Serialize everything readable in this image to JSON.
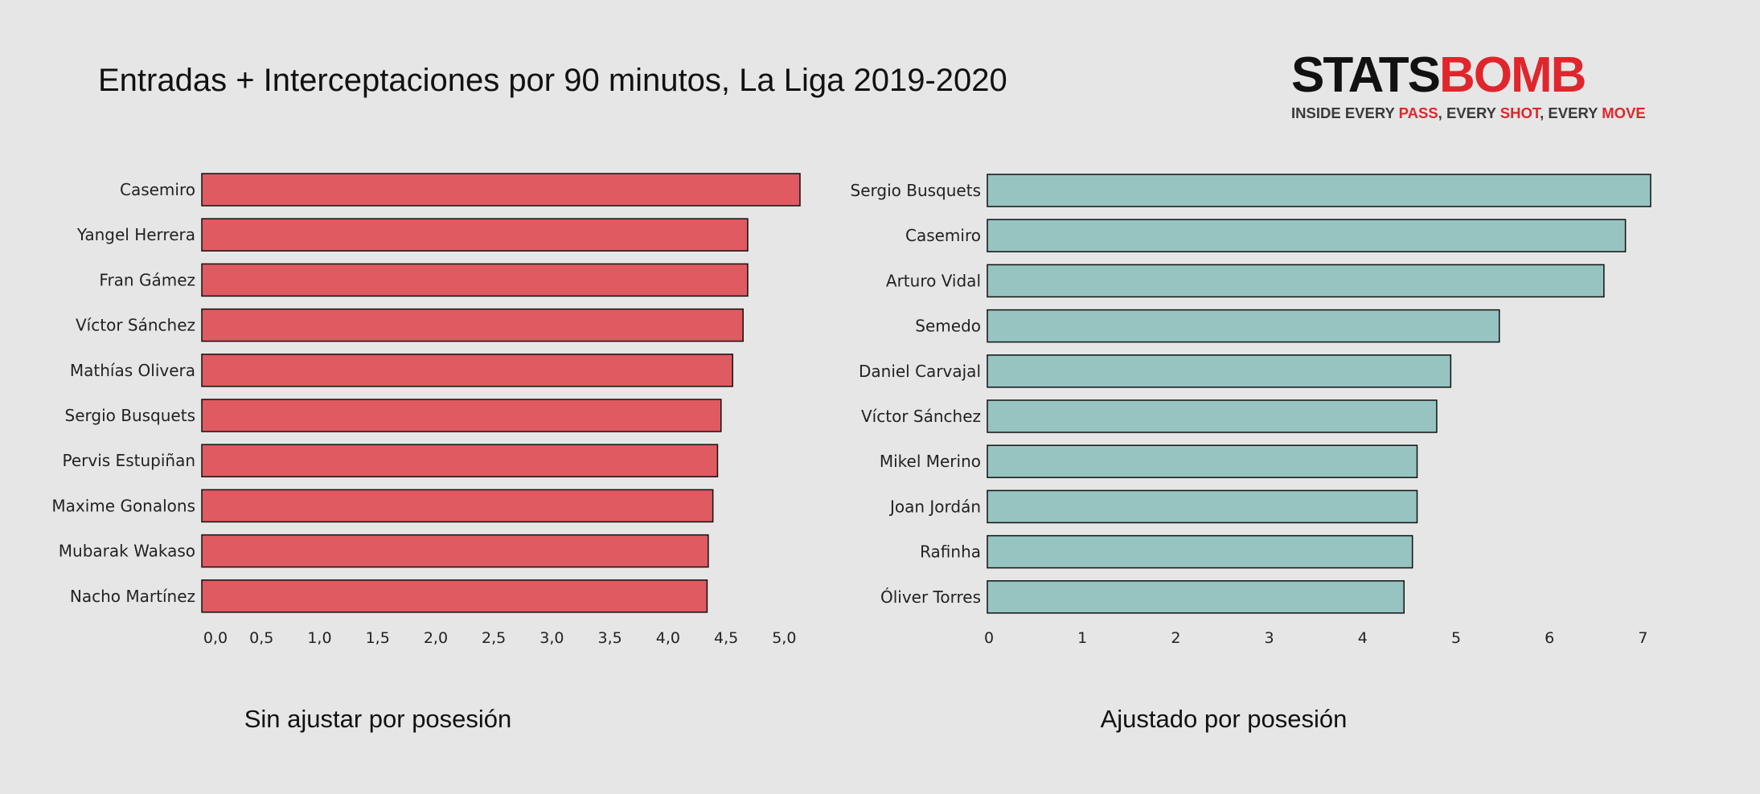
{
  "title": "Entradas + Interceptaciones por 90 minutos, La Liga 2019-2020",
  "logo": {
    "word_left": "STATS",
    "word_right": "BOMB",
    "tag_parts": [
      {
        "text": "INSIDE EVERY ",
        "red": false
      },
      {
        "text": "PASS",
        "red": true
      },
      {
        "text": ", EVERY ",
        "red": false
      },
      {
        "text": "SHOT",
        "red": true
      },
      {
        "text": ", EVERY ",
        "red": false
      },
      {
        "text": "MOVE",
        "red": true
      }
    ]
  },
  "colors": {
    "background": "#e6e6e6",
    "left_bar": "#e05a62",
    "right_bar": "#96c4c1",
    "bar_edge": "#111111",
    "brand_red": "#e0262c"
  },
  "chart_data": [
    {
      "type": "bar",
      "orientation": "horizontal",
      "subtitle": "Sin ajustar por posesión",
      "categories": [
        "Casemiro",
        "Yangel Herrera",
        "Fran Gámez",
        "Víctor Sánchez",
        "Mathías Olivera",
        "Sergio Busquets",
        "Pervis Estupiñan",
        "Maxime Gonalons",
        "Mubarak Wakaso",
        "Nacho Martínez"
      ],
      "values": [
        5.15,
        4.7,
        4.7,
        4.66,
        4.57,
        4.47,
        4.44,
        4.4,
        4.36,
        4.35
      ],
      "xticks": [
        0.0,
        0.5,
        1.0,
        1.5,
        2.0,
        2.5,
        3.0,
        3.5,
        4.0,
        4.5,
        5.0
      ],
      "xtick_labels": [
        "0,0",
        "0,5",
        "1,0",
        "1,5",
        "2,0",
        "2,5",
        "3,0",
        "3,5",
        "4,0",
        "4,5",
        "5,0"
      ],
      "xlim": [
        0,
        5.15
      ]
    },
    {
      "type": "bar",
      "orientation": "horizontal",
      "subtitle": "Ajustado por posesión",
      "categories": [
        "Sergio Busquets",
        "Casemiro",
        "Arturo Vidal",
        "Semedo",
        "Daniel Carvajal",
        "Víctor Sánchez",
        "Mikel Merino",
        "Joan Jordán",
        "Rafinha",
        "Óliver Torres"
      ],
      "values": [
        7.1,
        6.83,
        6.6,
        5.48,
        4.96,
        4.81,
        4.6,
        4.6,
        4.55,
        4.46
      ],
      "xticks": [
        0,
        1,
        2,
        3,
        4,
        5,
        6,
        7
      ],
      "xtick_labels": [
        "0",
        "1",
        "2",
        "3",
        "4",
        "5",
        "6",
        "7"
      ],
      "xlim": [
        0,
        7.1
      ]
    }
  ]
}
